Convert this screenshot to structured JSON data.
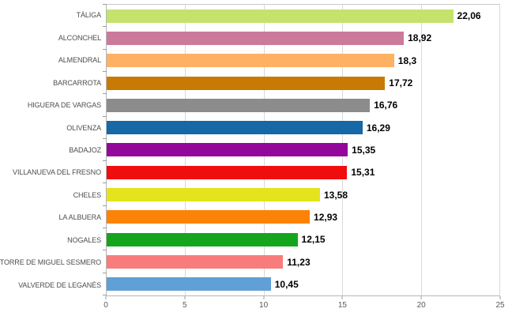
{
  "chart_data": {
    "type": "bar",
    "orientation": "horizontal",
    "title": "",
    "xlabel": "",
    "ylabel": "",
    "xlim": [
      0,
      25
    ],
    "x_ticks": [
      0,
      5,
      10,
      15,
      20,
      25
    ],
    "x_tick_labels": [
      "0",
      "5",
      "10",
      "15",
      "20",
      "25"
    ],
    "grid": "vertical",
    "legend": "none",
    "decimal_format": "comma",
    "categories": [
      "TÁLIGA",
      "ALCONCHEL",
      "ALMENDRAL",
      "BARCARROTA",
      "HIGUERA DE VARGAS",
      "OLIVENZA",
      "BADAJOZ",
      "VILLANUEVA DEL FRESNO",
      "CHELES",
      "LA ALBUERA",
      "NOGALES",
      "TORRE DE MIGUEL SESMERO",
      "VALVERDE DE LEGANÉS"
    ],
    "values": [
      22.06,
      18.92,
      18.3,
      17.72,
      16.76,
      16.29,
      15.35,
      15.31,
      13.58,
      12.93,
      12.15,
      11.23,
      10.45
    ],
    "bars": [
      {
        "category": "TÁLIGA",
        "value": 22.06,
        "label": "22,06",
        "color": "#c5e26d"
      },
      {
        "category": "ALCONCHEL",
        "value": 18.92,
        "label": "18,92",
        "color": "#cc7a9b"
      },
      {
        "category": "ALMENDRAL",
        "value": 18.3,
        "label": "18,3",
        "color": "#ffb163"
      },
      {
        "category": "BARCARROTA",
        "value": 17.72,
        "label": "17,72",
        "color": "#c87b04"
      },
      {
        "category": "HIGUERA DE VARGAS",
        "value": 16.76,
        "label": "16,76",
        "color": "#8c8c8c"
      },
      {
        "category": "OLIVENZA",
        "value": 16.29,
        "label": "16,29",
        "color": "#1668a6"
      },
      {
        "category": "BADAJOZ",
        "value": 15.35,
        "label": "15,35",
        "color": "#94079b"
      },
      {
        "category": "VILLANUEVA DEL FRESNO",
        "value": 15.31,
        "label": "15,31",
        "color": "#f00d0d"
      },
      {
        "category": "CHELES",
        "value": 13.58,
        "label": "13,58",
        "color": "#e4e41c"
      },
      {
        "category": "LA ALBUERA",
        "value": 12.93,
        "label": "12,93",
        "color": "#fc8308"
      },
      {
        "category": "NOGALES",
        "value": 12.15,
        "label": "12,15",
        "color": "#14a51d"
      },
      {
        "category": "TORRE DE MIGUEL SESMERO",
        "value": 11.23,
        "label": "11,23",
        "color": "#f97c7c"
      },
      {
        "category": "VALVERDE DE LEGANÉS",
        "value": 10.45,
        "label": "10,45",
        "color": "#5fa0d6"
      }
    ]
  },
  "colors": {
    "background": "#ffffff",
    "plot_border": "#c8c8c8",
    "gridline": "#d9d9d9",
    "axis_line": "#b5b5b5",
    "tick": "#9c9c9c",
    "category_label": "#4d4d4d",
    "value_label": "#000000",
    "x_tick_label": "#5a5a5a"
  }
}
